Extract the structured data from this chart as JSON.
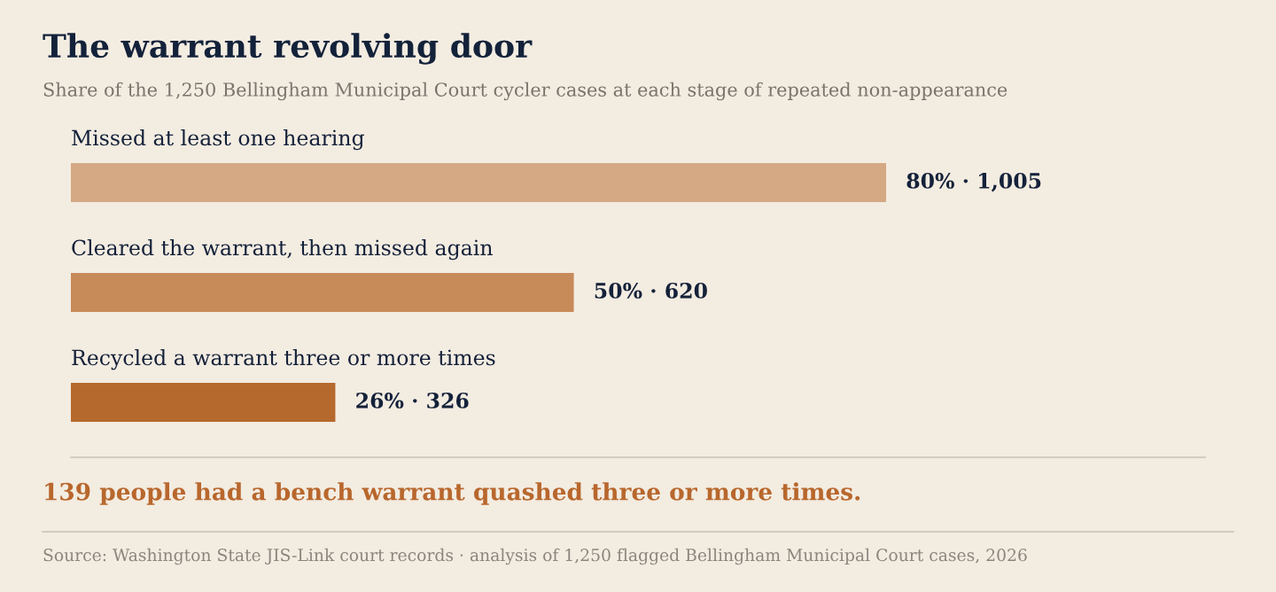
{
  "chart_data": {
    "type": "bar",
    "orientation": "horizontal",
    "title": "The warrant revolving door",
    "subtitle": "Share of the 1,250 Bellingham Municipal Court cycler cases at each stage of repeated non-appearance",
    "categories": [
      "Missed at least one hearing",
      "Cleared the warrant, then missed again",
      "Recycled a warrant three or more times"
    ],
    "values": [
      1005,
      620,
      326
    ],
    "colors": [
      "#d5a984",
      "#c78a59",
      "#b5692d"
    ],
    "value_labels": [
      "80% · 1,005",
      "50% · 620",
      "26% · 326"
    ],
    "annotations": [
      "139 people had a bench warrant quashed three or more times.",
      "Source: Washington State JIS-Link court records · analysis of 1,250 flagged Bellingham Municipal Court cases, 2026"
    ]
  }
}
